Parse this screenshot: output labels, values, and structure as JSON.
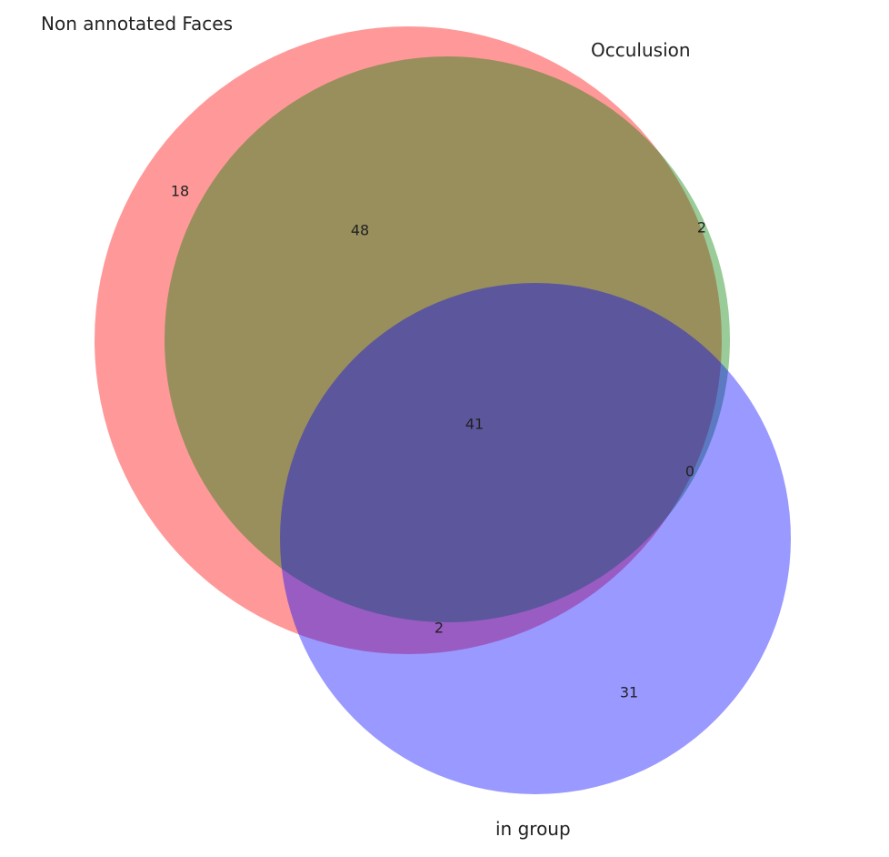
{
  "diagram": {
    "type": "venn3",
    "sets": [
      {
        "key": "A",
        "label": "Non annotated Faces",
        "color": "#ff0000"
      },
      {
        "key": "B",
        "label": "Occulusion",
        "color": "#008000"
      },
      {
        "key": "C",
        "label": "in group",
        "color": "#0000ff"
      }
    ],
    "region_counts": {
      "A_only": "18",
      "B_only": "2",
      "C_only": "31",
      "A_B": "48",
      "A_C": "2",
      "B_C": "0",
      "A_B_C": "41"
    },
    "fill_opacity": 0.4
  }
}
